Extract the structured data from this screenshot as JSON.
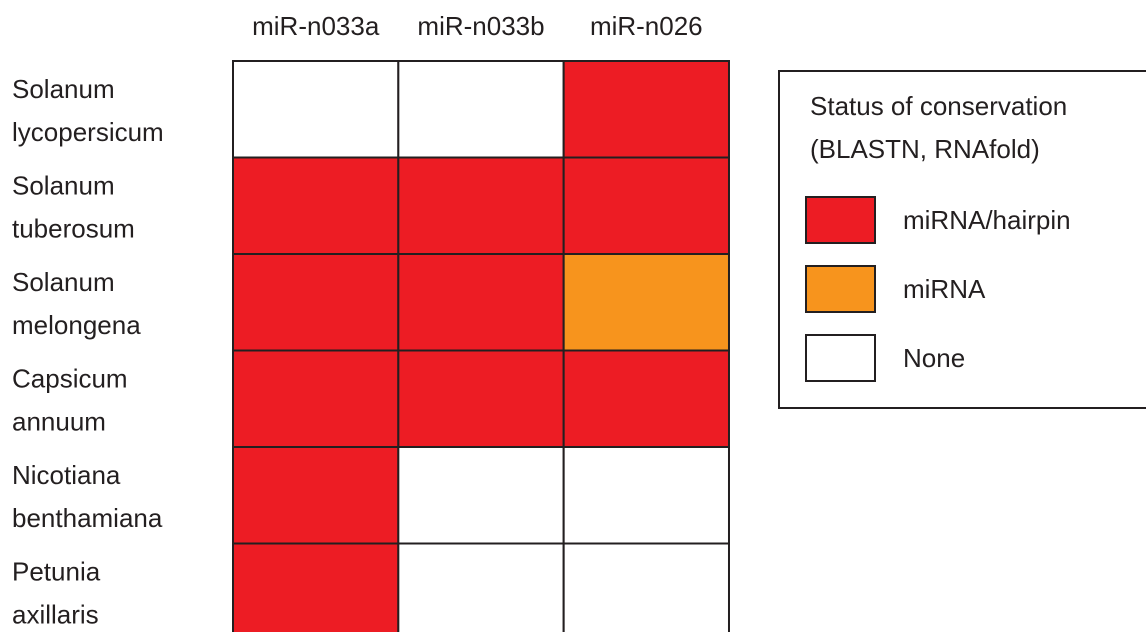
{
  "chart_data": {
    "type": "heatmap",
    "columns": [
      "miR-n033a",
      "miR-n033b",
      "miR-n026"
    ],
    "rows": [
      {
        "line1": "Solanum",
        "line2": "lycopersicum"
      },
      {
        "line1": "Solanum",
        "line2": "tuberosum"
      },
      {
        "line1": "Solanum",
        "line2": "melongena"
      },
      {
        "line1": "Capsicum",
        "line2": "annuum"
      },
      {
        "line1": "Nicotiana",
        "line2": "benthamiana"
      },
      {
        "line1": "Petunia",
        "line2": "axillaris"
      }
    ],
    "values": [
      [
        "None",
        "None",
        "miRNA/hairpin"
      ],
      [
        "miRNA/hairpin",
        "miRNA/hairpin",
        "miRNA/hairpin"
      ],
      [
        "miRNA/hairpin",
        "miRNA/hairpin",
        "miRNA"
      ],
      [
        "miRNA/hairpin",
        "miRNA/hairpin",
        "miRNA/hairpin"
      ],
      [
        "miRNA/hairpin",
        "None",
        "None"
      ],
      [
        "miRNA/hairpin",
        "None",
        "None"
      ]
    ],
    "legend": {
      "title_line1": "Status of conservation",
      "title_line2": "(BLASTN, RNAfold)",
      "position": "right",
      "items": [
        {
          "label": "miRNA/hairpin",
          "color": "#ed1c24"
        },
        {
          "label": "miRNA",
          "color": "#f7941d"
        },
        {
          "label": "None",
          "color": "#ffffff"
        }
      ]
    }
  }
}
